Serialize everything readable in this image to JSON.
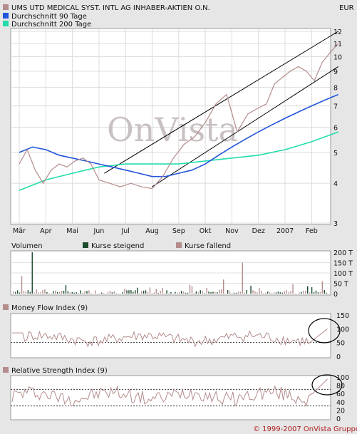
{
  "header": {
    "title": "UMS UTD MEDICAL SYST. INTL AG INHABER-AKTIEN O.N.",
    "currency": "EUR",
    "legend": [
      {
        "label": "UMS UTD MEDICAL SYST. INTL AG INHABER-AKTIEN O.N.",
        "color": "#b48c8c"
      },
      {
        "label": "Durchschnitt 90 Tage",
        "color": "#2255dd"
      },
      {
        "label": "Durchschnitt 200 Tage",
        "color": "#22ddaa"
      }
    ]
  },
  "watermark": "OnVista",
  "copyright": "© 1999-2007 OnVista Gruppe",
  "colors": {
    "price": "#b48c8c",
    "ma90": "#2255dd",
    "ma200": "#22ddaa",
    "up": "#1c4a2c",
    "down": "#b48c8c",
    "channel": "#000000"
  },
  "chart_data": [
    {
      "type": "line",
      "name": "price",
      "x_ticks": [
        "Mär",
        "Apr",
        "Mai",
        "Jun",
        "Jul",
        "Aug",
        "Sep",
        "Okt",
        "Nov",
        "Dez",
        "2007",
        "Feb"
      ],
      "y_scale": "log",
      "ylim": [
        3,
        12
      ],
      "y_ticks": [
        3,
        4,
        5,
        6,
        7,
        8,
        9,
        10,
        11,
        12
      ],
      "grid": true,
      "legend_position": "top-left",
      "series": [
        {
          "name": "UMS UTD MEDICAL SYST. INTL AG INHABER-AKTIEN O.N.",
          "color": "#b48c8c",
          "x": [
            0,
            0.3,
            0.6,
            0.9,
            1.2,
            1.5,
            1.8,
            2.1,
            2.4,
            2.7,
            3.0,
            3.4,
            3.8,
            4.2,
            4.6,
            5.0,
            5.4,
            5.8,
            6.2,
            6.6,
            7.0,
            7.4,
            7.8,
            8.2,
            8.6,
            9.0,
            9.3,
            9.6,
            9.9,
            10.2,
            10.5,
            10.8,
            11.1,
            11.4,
            11.7,
            12.0
          ],
          "y": [
            4.6,
            5.1,
            4.4,
            4.0,
            4.4,
            4.6,
            4.5,
            4.7,
            4.8,
            4.6,
            4.1,
            4.0,
            3.9,
            4.0,
            3.9,
            3.85,
            4.2,
            4.8,
            5.3,
            5.6,
            6.2,
            7.1,
            7.6,
            5.8,
            6.6,
            6.9,
            7.1,
            8.2,
            8.6,
            9.0,
            9.3,
            9.0,
            8.4,
            9.6,
            10.3,
            11.0
          ]
        },
        {
          "name": "Durchschnitt 90 Tage",
          "color": "#2255dd",
          "x": [
            0,
            0.5,
            1.0,
            1.5,
            2.0,
            2.5,
            3.0,
            3.5,
            4.0,
            4.5,
            5.0,
            5.5,
            6.0,
            6.5,
            7.0,
            7.5,
            8.0,
            8.5,
            9.0,
            9.5,
            10.0,
            10.5,
            11.0,
            11.5,
            12.0
          ],
          "y": [
            5.0,
            5.2,
            5.1,
            4.9,
            4.8,
            4.7,
            4.6,
            4.5,
            4.4,
            4.3,
            4.2,
            4.2,
            4.3,
            4.4,
            4.6,
            4.9,
            5.2,
            5.5,
            5.8,
            6.1,
            6.4,
            6.7,
            7.0,
            7.3,
            7.6
          ]
        },
        {
          "name": "Durchschnitt 200 Tage",
          "color": "#22ddaa",
          "x": [
            0,
            1,
            2,
            3,
            4,
            5,
            6,
            7,
            8,
            9,
            10,
            11,
            12
          ],
          "y": [
            3.8,
            4.1,
            4.3,
            4.5,
            4.6,
            4.6,
            4.6,
            4.7,
            4.8,
            4.9,
            5.1,
            5.4,
            5.8
          ]
        }
      ],
      "trend_channel": [
        {
          "x": [
            3.2,
            12.0
          ],
          "y": [
            4.3,
            12.0
          ]
        },
        {
          "x": [
            5.0,
            12.0
          ],
          "y": [
            3.9,
            9.3
          ]
        }
      ]
    },
    {
      "type": "bar",
      "name": "volume",
      "title": "Volumen",
      "legend": [
        {
          "name": "Kurse steigend",
          "color": "#1c4a2c"
        },
        {
          "name": "Kurse fallend",
          "color": "#b48c8c"
        }
      ],
      "y_ticks": [
        "200 T",
        "150 T",
        "100 T",
        "50 T",
        "0"
      ],
      "ylim": [
        0,
        200
      ]
    },
    {
      "type": "line",
      "name": "mfi",
      "title": "Money Flow Index (9)",
      "y_ticks": [
        150,
        100,
        50,
        0
      ],
      "ylim": [
        0,
        150
      ],
      "reference_line": 50
    },
    {
      "type": "line",
      "name": "rsi",
      "title": "Relative Strength Index (9)",
      "y_ticks": [
        100,
        80,
        60,
        40,
        20,
        0
      ],
      "ylim": [
        0,
        100
      ],
      "reference_lines": [
        30,
        70
      ]
    }
  ]
}
